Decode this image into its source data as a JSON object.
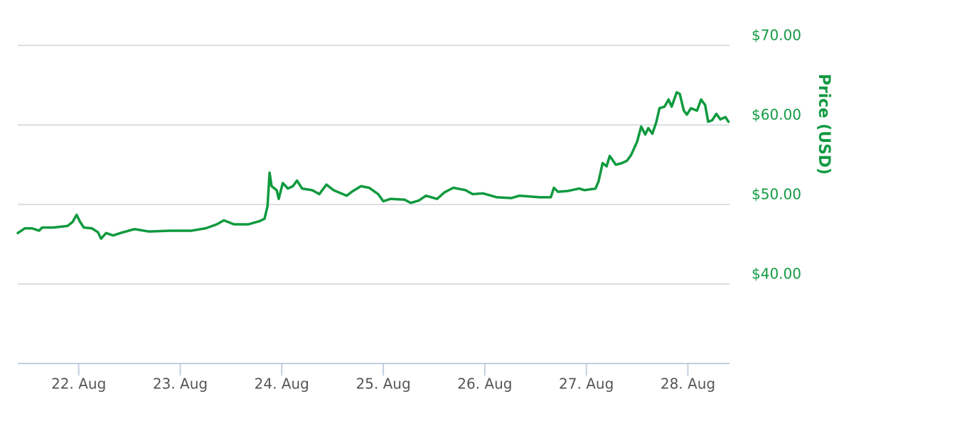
{
  "chart_data": {
    "type": "line",
    "y_axis_label": "Price (USD)",
    "x": [
      21.4,
      21.47,
      21.54,
      21.61,
      21.64,
      21.75,
      21.89,
      21.94,
      21.98,
      22.01,
      22.05,
      22.13,
      22.19,
      22.22,
      22.27,
      22.34,
      22.41,
      22.55,
      22.69,
      22.9,
      23.11,
      23.25,
      23.36,
      23.43,
      23.53,
      23.67,
      23.78,
      23.83,
      23.86,
      23.88,
      23.9,
      23.95,
      23.97,
      24.01,
      24.06,
      24.11,
      24.15,
      24.2,
      24.3,
      24.37,
      24.44,
      24.51,
      24.64,
      24.69,
      24.78,
      24.86,
      24.95,
      25.0,
      25.07,
      25.21,
      25.27,
      25.35,
      25.42,
      25.53,
      25.6,
      25.69,
      25.81,
      25.88,
      25.98,
      26.12,
      26.26,
      26.34,
      26.54,
      26.65,
      26.68,
      26.72,
      26.82,
      26.93,
      26.98,
      27.09,
      27.12,
      27.16,
      27.2,
      27.23,
      27.29,
      27.35,
      27.4,
      27.44,
      27.5,
      27.54,
      27.58,
      27.61,
      27.65,
      27.69,
      27.72,
      27.77,
      27.81,
      27.84,
      27.89,
      27.92,
      27.96,
      27.99,
      28.03,
      28.09,
      28.13,
      28.17,
      28.2,
      28.24,
      28.28,
      28.32,
      28.37,
      28.4
    ],
    "series": [
      {
        "name": "Price",
        "color": "#0f9a3e",
        "values": [
          46.4,
          47.0,
          47.0,
          46.7,
          47.1,
          47.1,
          47.3,
          47.8,
          48.7,
          47.9,
          47.1,
          47.0,
          46.5,
          45.7,
          46.4,
          46.1,
          46.4,
          46.9,
          46.6,
          46.7,
          46.7,
          47.0,
          47.5,
          48.0,
          47.5,
          47.5,
          47.9,
          48.2,
          49.8,
          54.0,
          52.3,
          51.8,
          50.7,
          52.7,
          52.0,
          52.3,
          53.0,
          52.0,
          51.8,
          51.3,
          52.5,
          51.8,
          51.1,
          51.6,
          52.3,
          52.1,
          51.3,
          50.4,
          50.7,
          50.6,
          50.2,
          50.5,
          51.1,
          50.7,
          51.5,
          52.1,
          51.8,
          51.3,
          51.4,
          50.9,
          50.8,
          51.1,
          50.9,
          50.9,
          52.1,
          51.6,
          51.7,
          52.0,
          51.8,
          52.0,
          52.9,
          55.2,
          54.8,
          56.1,
          55.0,
          55.2,
          55.5,
          56.2,
          57.9,
          59.8,
          58.8,
          59.6,
          58.9,
          60.4,
          62.1,
          62.3,
          63.2,
          62.3,
          64.1,
          63.9,
          61.8,
          61.3,
          62.1,
          61.8,
          63.2,
          62.5,
          60.4,
          60.6,
          61.4,
          60.7,
          61.0,
          60.4
        ]
      }
    ],
    "xlim": [
      21.4,
      28.41
    ],
    "xticks": [
      {
        "value": 22,
        "label": "22. Aug"
      },
      {
        "value": 23,
        "label": "23. Aug"
      },
      {
        "value": 24,
        "label": "24. Aug"
      },
      {
        "value": 25,
        "label": "25. Aug"
      },
      {
        "value": 26,
        "label": "26. Aug"
      },
      {
        "value": 27,
        "label": "27. Aug"
      },
      {
        "value": 28,
        "label": "28. Aug"
      }
    ],
    "ylim": [
      30,
      70
    ],
    "yticks": [
      {
        "value": 40,
        "label": "$40.00"
      },
      {
        "value": 50,
        "label": "$50.00"
      },
      {
        "value": 60,
        "label": "$60.00"
      },
      {
        "value": 70,
        "label": "$70.00"
      }
    ],
    "grid": true,
    "axis_label_color": "#139a43"
  }
}
